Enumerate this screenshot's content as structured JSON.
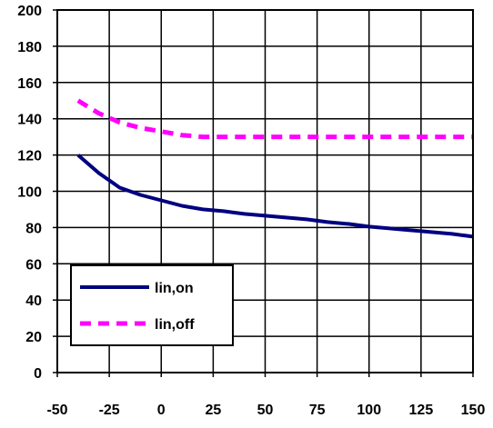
{
  "chart_data": {
    "type": "line",
    "title": "",
    "xlabel": "",
    "ylabel": "",
    "xlim": [
      -50,
      150
    ],
    "ylim": [
      0,
      200
    ],
    "xticks": [
      -50,
      -25,
      0,
      25,
      50,
      75,
      100,
      125,
      150
    ],
    "yticks": [
      0,
      20,
      40,
      60,
      80,
      100,
      120,
      140,
      160,
      180,
      200
    ],
    "xtick_labels": [
      "-50",
      "-25",
      "0",
      "25",
      "50",
      "75",
      "100",
      "125",
      "150"
    ],
    "ytick_labels": [
      "0",
      "20",
      "40",
      "60",
      "80",
      "100",
      "120",
      "140",
      "160",
      "180",
      "200"
    ],
    "grid": true,
    "legend_position": "bottom-left",
    "series": [
      {
        "name": "lin,on",
        "color": "#000080",
        "style": "solid",
        "points": [
          [
            -40,
            120
          ],
          [
            -30,
            110
          ],
          [
            -20,
            102
          ],
          [
            -10,
            98
          ],
          [
            0,
            95
          ],
          [
            10,
            92
          ],
          [
            20,
            90
          ],
          [
            30,
            89
          ],
          [
            40,
            87.5
          ],
          [
            50,
            86.5
          ],
          [
            60,
            85.5
          ],
          [
            70,
            84.5
          ],
          [
            80,
            83
          ],
          [
            90,
            82
          ],
          [
            100,
            80.5
          ],
          [
            110,
            79.5
          ],
          [
            120,
            78.5
          ],
          [
            130,
            77.5
          ],
          [
            140,
            76.5
          ],
          [
            150,
            75
          ]
        ]
      },
      {
        "name": "lin,off",
        "color": "#ff00ff",
        "style": "dashed",
        "points": [
          [
            -40,
            150
          ],
          [
            -30,
            143
          ],
          [
            -20,
            138
          ],
          [
            -10,
            135
          ],
          [
            0,
            133
          ],
          [
            10,
            131
          ],
          [
            20,
            130
          ],
          [
            30,
            130
          ],
          [
            40,
            130
          ],
          [
            50,
            130
          ],
          [
            60,
            130
          ],
          [
            70,
            130
          ],
          [
            80,
            130
          ],
          [
            90,
            130
          ],
          [
            100,
            130
          ],
          [
            110,
            130
          ],
          [
            120,
            130
          ],
          [
            130,
            130
          ],
          [
            140,
            130
          ],
          [
            150,
            130
          ]
        ]
      }
    ]
  }
}
